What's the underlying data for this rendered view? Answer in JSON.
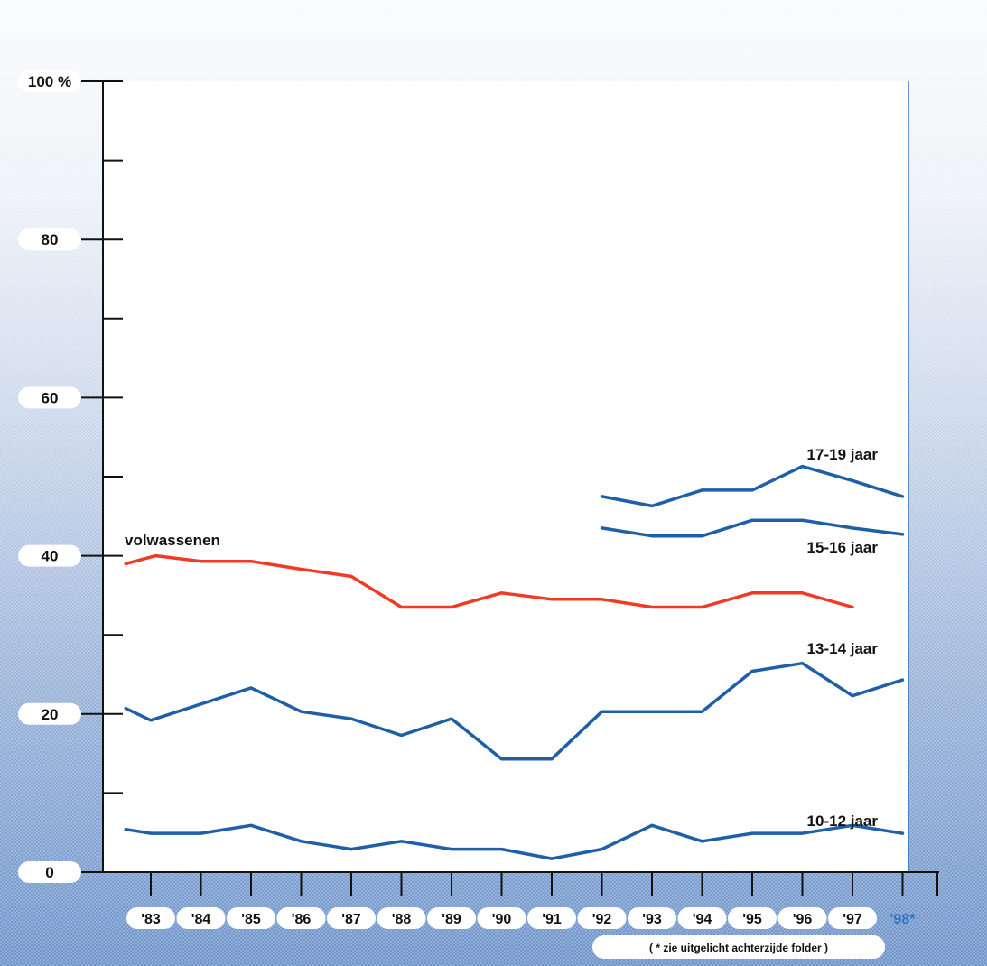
{
  "chart_data": {
    "type": "line",
    "categories": [
      "'83",
      "'84",
      "'85",
      "'86",
      "'87",
      "'88",
      "'89",
      "'90",
      "'91",
      "'92",
      "'93",
      "'94",
      "'95",
      "'96",
      "'97",
      "'98*"
    ],
    "highlight_category": "'98*",
    "y_ticks": [
      {
        "value": 0,
        "label": "0"
      },
      {
        "value": 20,
        "label": "20"
      },
      {
        "value": 40,
        "label": "40"
      },
      {
        "value": 60,
        "label": "60"
      },
      {
        "value": 80,
        "label": "80"
      },
      {
        "value": 100,
        "label": "100 %"
      }
    ],
    "y_minor_ticks": [
      10,
      30,
      50,
      70,
      90
    ],
    "ylim": [
      0,
      100
    ],
    "xlim": [
      1982.5,
      1998.2
    ],
    "series": [
      {
        "name": "volwassenen",
        "color": "#f03a24",
        "points": [
          [
            1982.5,
            39
          ],
          [
            1983.1,
            40
          ],
          [
            1984.0,
            39.3
          ],
          [
            1985.0,
            39.3
          ],
          [
            1986.0,
            38.3
          ],
          [
            1987.0,
            37.4
          ],
          [
            1988.0,
            33.5
          ],
          [
            1989.0,
            33.5
          ],
          [
            1990.0,
            35.3
          ],
          [
            1991.0,
            34.5
          ],
          [
            1992.0,
            34.5
          ],
          [
            1993.0,
            33.5
          ],
          [
            1994.0,
            33.5
          ],
          [
            1995.0,
            35.3
          ],
          [
            1996.0,
            35.3
          ],
          [
            1997.0,
            33.5
          ]
        ]
      },
      {
        "name": "17-19 jaar",
        "color": "#1e5fa8",
        "points": [
          [
            1992.0,
            47.5
          ],
          [
            1993.0,
            46.3
          ],
          [
            1994.0,
            48.3
          ],
          [
            1995.0,
            48.3
          ],
          [
            1996.0,
            51.3
          ],
          [
            1997.0,
            49.5
          ],
          [
            1998.0,
            47.5
          ]
        ]
      },
      {
        "name": "15-16 jaar",
        "color": "#1e5fa8",
        "points": [
          [
            1992.0,
            43.5
          ],
          [
            1993.0,
            42.5
          ],
          [
            1994.0,
            42.5
          ],
          [
            1995.0,
            44.5
          ],
          [
            1996.0,
            44.5
          ],
          [
            1997.0,
            43.5
          ],
          [
            1998.0,
            42.7
          ]
        ]
      },
      {
        "name": "13-14 jaar",
        "color": "#1e5fa8",
        "points": [
          [
            1982.5,
            20.7
          ],
          [
            1983.0,
            19.2
          ],
          [
            1985.0,
            23.3
          ],
          [
            1986.0,
            20.3
          ],
          [
            1987.0,
            19.4
          ],
          [
            1988.0,
            17.3
          ],
          [
            1989.0,
            19.4
          ],
          [
            1990.0,
            14.3
          ],
          [
            1991.0,
            14.3
          ],
          [
            1992.0,
            20.3
          ],
          [
            1993.0,
            20.3
          ],
          [
            1994.0,
            20.3
          ],
          [
            1995.0,
            25.4
          ],
          [
            1996.0,
            26.4
          ],
          [
            1997.0,
            22.3
          ],
          [
            1998.0,
            24.3
          ]
        ]
      },
      {
        "name": "10-12 jaar",
        "color": "#1e5fa8",
        "points": [
          [
            1982.5,
            5.4
          ],
          [
            1983.0,
            4.9
          ],
          [
            1984.0,
            4.9
          ],
          [
            1985.0,
            5.9
          ],
          [
            1986.0,
            3.9
          ],
          [
            1987.0,
            2.9
          ],
          [
            1988.0,
            3.9
          ],
          [
            1989.0,
            2.9
          ],
          [
            1990.0,
            2.9
          ],
          [
            1991.0,
            1.7
          ],
          [
            1992.0,
            2.9
          ],
          [
            1993.0,
            5.9
          ],
          [
            1994.0,
            3.9
          ],
          [
            1995.0,
            4.9
          ],
          [
            1996.0,
            4.9
          ],
          [
            1997.0,
            5.9
          ],
          [
            1998.0,
            4.9
          ]
        ]
      }
    ],
    "annotation": "( * zie uitgelicht achterzijde folder )",
    "grid": false,
    "legend": "inline labels"
  }
}
